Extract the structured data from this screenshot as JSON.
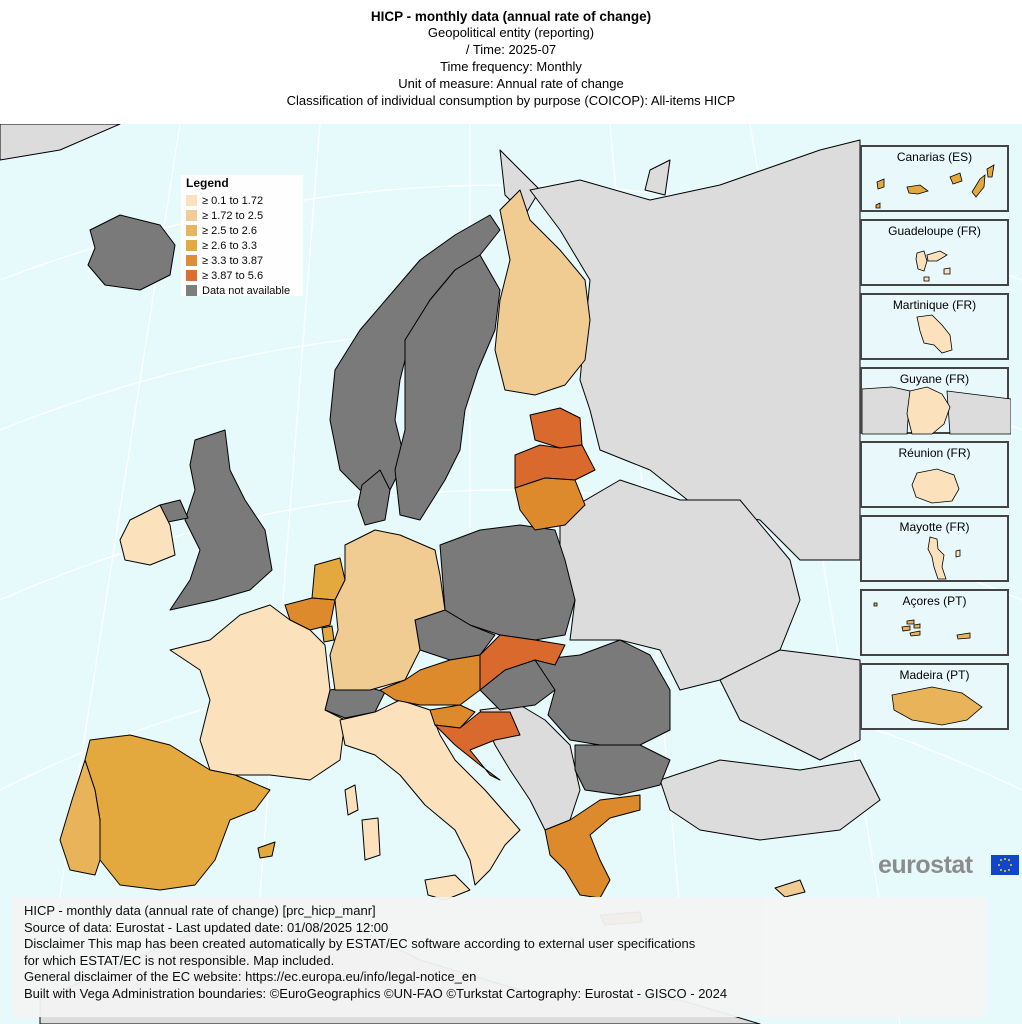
{
  "header": {
    "title": "HICP - monthly data (annual rate of change)",
    "lines": [
      "Geopolitical entity (reporting)",
      "/ Time:  2025-07",
      "Time frequency:  Monthly",
      "Unit of measure:  Annual rate of change",
      "Classification of individual consumption by purpose (COICOP):  All-items HICP"
    ]
  },
  "legend": {
    "title": "Legend",
    "items": [
      {
        "label": "≥ 0.1 to 1.72",
        "color": "#fbe2bd"
      },
      {
        "label": "≥ 1.72 to 2.5",
        "color": "#f0cc92"
      },
      {
        "label": "≥ 2.5 to 2.6",
        "color": "#e9b35a"
      },
      {
        "label": "≥ 2.6 to 3.3",
        "color": "#e3a83e"
      },
      {
        "label": "≥ 3.3 to 3.87",
        "color": "#dd8a2c"
      },
      {
        "label": "≥ 3.87 to 5.6",
        "color": "#d9692c"
      },
      {
        "label": "Data not available",
        "color": "#7a7a7a"
      }
    ]
  },
  "insets": [
    {
      "name": "Canarias (ES)"
    },
    {
      "name": "Guadeloupe (FR)"
    },
    {
      "name": "Martinique (FR)"
    },
    {
      "name": "Guyane (FR)"
    },
    {
      "name": "Réunion (FR)"
    },
    {
      "name": "Mayotte (FR)"
    },
    {
      "name": "Açores (PT)"
    },
    {
      "name": "Madeira (PT)"
    }
  ],
  "footer": {
    "lines": [
      "HICP - monthly data (annual rate of change) [prc_hicp_manr]",
      "Source of data: Eurostat - Last updated date: 01/08/2025 12:00",
      "Disclaimer This map has been created automatically by ESTAT/EC software according to external user specifications",
      "for which ESTAT/EC is not responsible. Map included.",
      "General disclaimer of the EC website: https://ec.europa.eu/info/legal-notice_en",
      "Built with Vega Administration boundaries: ©EuroGeographics ©UN-FAO ©Turkstat Cartography: Eurostat - GISCO - 2024"
    ]
  },
  "logo": {
    "text": "eurostat"
  },
  "colors": {
    "sea": "#e6fafc",
    "non_eu": "#dcdcdc",
    "no_data": "#7a7a7a"
  }
}
